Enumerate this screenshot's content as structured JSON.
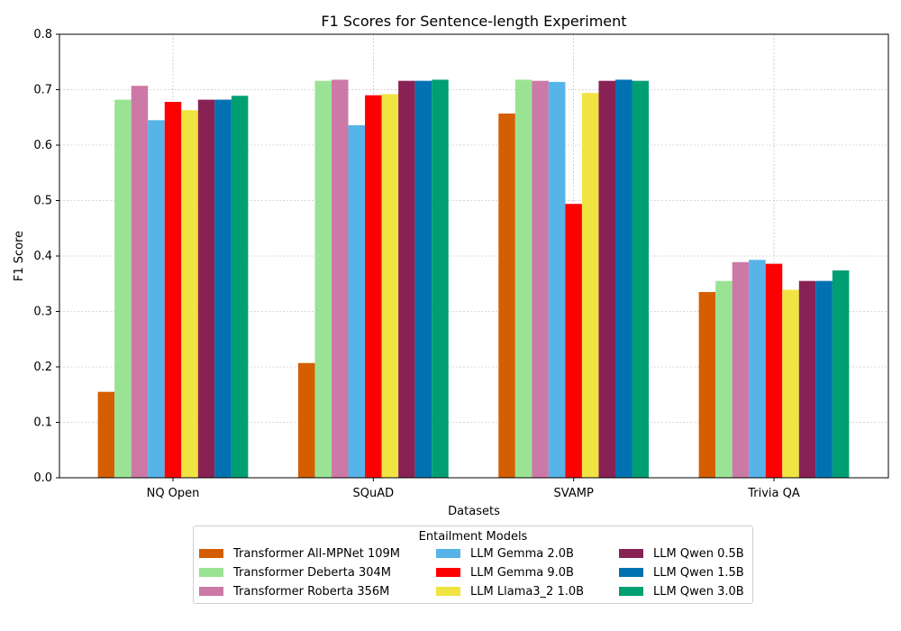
{
  "chart_data": {
    "type": "bar",
    "title": "F1 Scores for Sentence-length Experiment",
    "xlabel": "Datasets",
    "ylabel": "F1 Score",
    "ylim": [
      0,
      0.8
    ],
    "yticks": [
      "0.0",
      "0.1",
      "0.2",
      "0.3",
      "0.4",
      "0.5",
      "0.6",
      "0.7",
      "0.8"
    ],
    "grid": true,
    "legend_title": "Entailment Models",
    "legend_placement": "bottom-center",
    "categories": [
      "NQ Open",
      "SQuAD",
      "SVAMP",
      "Trivia QA"
    ],
    "series": [
      {
        "name": "Transformer All-MPNet 109M",
        "color": "#d55e00",
        "values": [
          0.155,
          0.207,
          0.657,
          0.335
        ]
      },
      {
        "name": "Transformer Deberta 304M",
        "color": "#9be394",
        "values": [
          0.682,
          0.716,
          0.718,
          0.355
        ]
      },
      {
        "name": "Transformer Roberta 356M",
        "color": "#cc79a7",
        "values": [
          0.707,
          0.718,
          0.716,
          0.389
        ]
      },
      {
        "name": "LLM Gemma 2.0B",
        "color": "#56b4e9",
        "values": [
          0.645,
          0.636,
          0.714,
          0.393
        ]
      },
      {
        "name": "LLM Gemma 9.0B",
        "color": "#ff0000",
        "values": [
          0.678,
          0.69,
          0.494,
          0.386
        ]
      },
      {
        "name": "LLM Llama3_2 1.0B",
        "color": "#f0e442",
        "values": [
          0.663,
          0.692,
          0.694,
          0.339
        ]
      },
      {
        "name": "LLM Qwen 0.5B",
        "color": "#882255",
        "values": [
          0.682,
          0.716,
          0.716,
          0.355
        ]
      },
      {
        "name": "LLM Qwen 1.5B",
        "color": "#0072b2",
        "values": [
          0.682,
          0.716,
          0.718,
          0.355
        ]
      },
      {
        "name": "LLM Qwen 3.0B",
        "color": "#009e73",
        "values": [
          0.689,
          0.718,
          0.716,
          0.374
        ]
      }
    ]
  }
}
